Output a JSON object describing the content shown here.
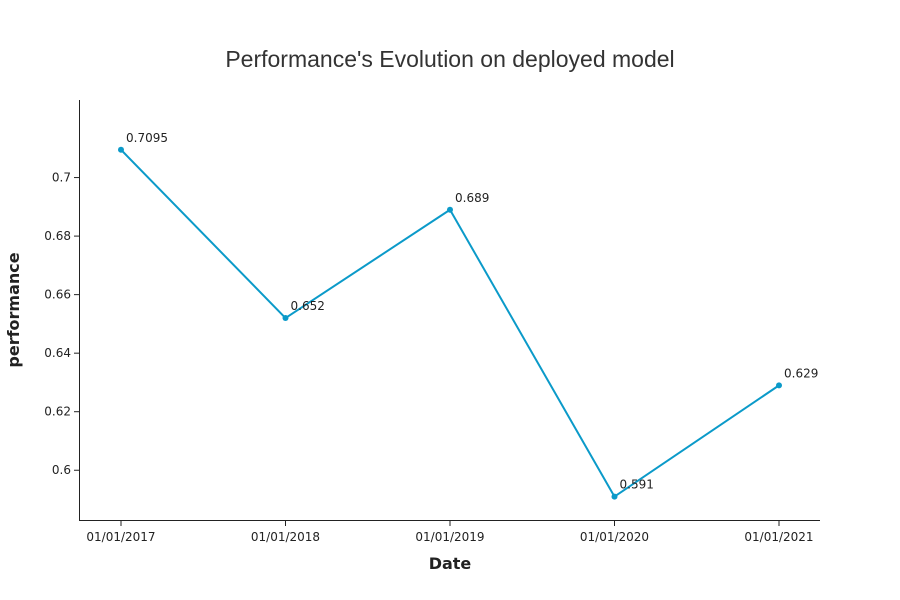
{
  "chart_data": {
    "type": "line",
    "title": "Performance's Evolution on deployed model",
    "xlabel": "Date",
    "ylabel": "performance",
    "x": [
      "01/01/2017",
      "01/01/2018",
      "01/01/2019",
      "01/01/2020",
      "01/01/2021"
    ],
    "series": [
      {
        "values": [
          0.7095,
          0.652,
          0.689,
          0.591,
          0.629
        ],
        "data_labels": [
          "0.7095",
          "0.652",
          "0.689",
          "0.591",
          "0.629"
        ],
        "color": "#0b9ac9"
      }
    ],
    "ylim": [
      0.583,
      0.7265
    ],
    "yticks": [
      0.6,
      0.62,
      0.64,
      0.66,
      0.68,
      0.7
    ],
    "ytick_labels": [
      "0.6",
      "0.62",
      "0.64",
      "0.66",
      "0.68",
      "0.7"
    ],
    "grid": false,
    "legend": "none"
  }
}
